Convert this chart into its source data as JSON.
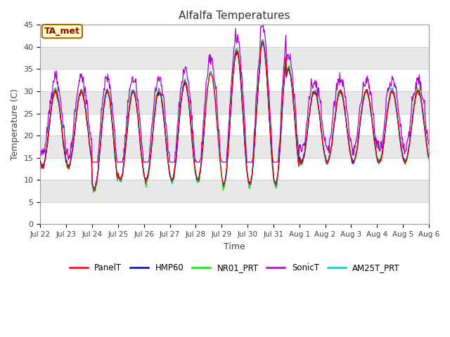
{
  "title": "Alfalfa Temperatures",
  "xlabel": "Time",
  "ylabel": "Temperature (C)",
  "ylim": [
    0,
    45
  ],
  "yticks": [
    0,
    5,
    10,
    15,
    20,
    25,
    30,
    35,
    40,
    45
  ],
  "annotation_text": "TA_met",
  "series_colors": {
    "PanelT": "#ff0000",
    "HMP60": "#0000cc",
    "NR01_PRT": "#00ee00",
    "SonicT": "#aa00cc",
    "AM25T_PRT": "#00cccc"
  },
  "bg_color": "#ffffff",
  "plot_bg": "#ffffff",
  "band_colors": [
    "#ffffff",
    "#e8e8e8"
  ],
  "x_tick_labels": [
    "Jul 22",
    "Jul 23",
    "Jul 24",
    "Jul 25",
    "Jul 26",
    "Jul 27",
    "Jul 28",
    "Jul 29",
    "Jul 30",
    "Jul 31",
    "Aug 1",
    "Aug 2",
    "Aug 3",
    "Aug 4",
    "Aug 5",
    "Aug 6"
  ],
  "n_days": 15
}
